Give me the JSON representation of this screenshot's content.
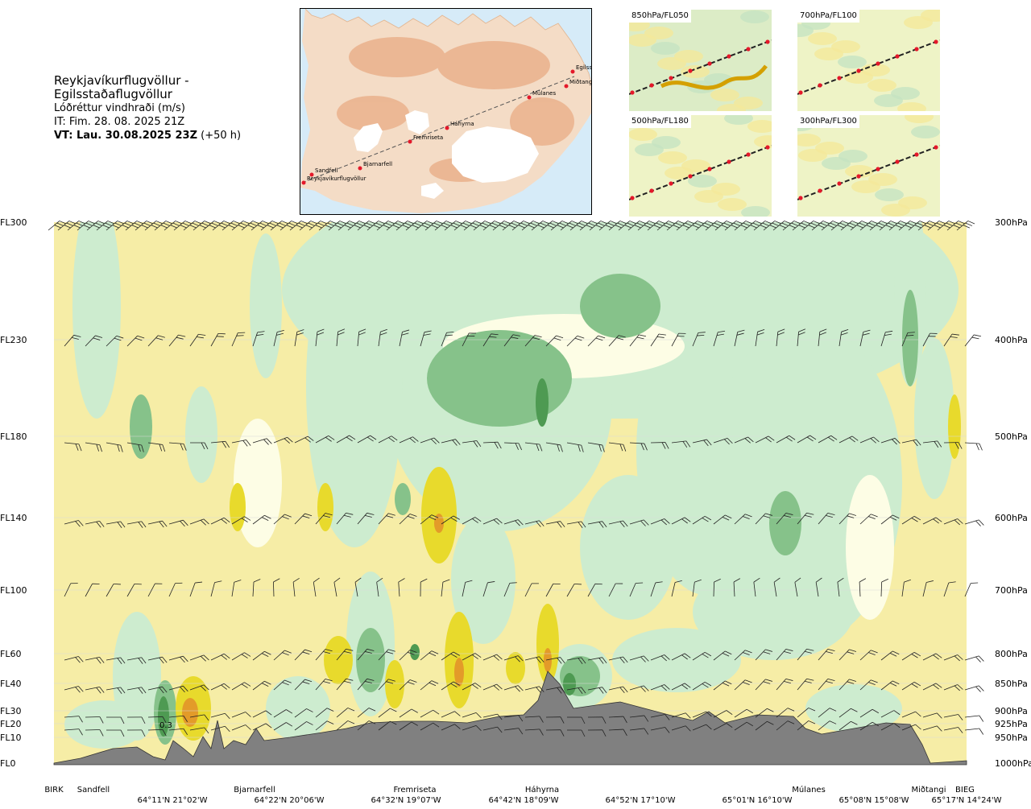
{
  "header": {
    "title": "Reykjavíkurflugvöllur - Egilsstaðaflugvöllur",
    "subtitle": "Lóðréttur vindhraði (m/s)",
    "issue_time": "IT: Fim. 28. 08. 2025 21Z",
    "valid_time_bold": "VT: Lau. 30.08.2025 23Z",
    "valid_time_offset": " (+50 h)"
  },
  "map": {
    "places": [
      {
        "name": "Reykjavíkurflugvöllur"
      },
      {
        "name": "Sandfell"
      },
      {
        "name": "Bjarnarfell"
      },
      {
        "name": "Fremriseta"
      },
      {
        "name": "Háhyrna"
      },
      {
        "name": "Múlanes"
      },
      {
        "name": "Miðtangi"
      },
      {
        "name": "Egilssta"
      }
    ]
  },
  "mini_maps": [
    {
      "label": "850hPa/FL050"
    },
    {
      "label": "700hPa/FL100"
    },
    {
      "label": "500hPa/FL180"
    },
    {
      "label": "300hPa/FL300"
    }
  ],
  "colors": {
    "strong_up": "#4e9a52",
    "up": "#86c28a",
    "weak_up": "#cdeccf",
    "neutral": "#fdfde5",
    "weak_down": "#f6eda6",
    "down": "#e8da2c",
    "strong_down": "#e39b29",
    "terrain": "#808080"
  },
  "chart_data": {
    "type": "heatmap",
    "title": "Reykjavíkurflugvöllur - Egilsstaðaflugvöllur",
    "value_label": "Lóðréttur vindhraði (m/s)",
    "levels": [
      {
        "fl": "FL300",
        "hpa": "300hPa"
      },
      {
        "fl": "FL230",
        "hpa": "400hPa"
      },
      {
        "fl": "FL180",
        "hpa": "500hPa"
      },
      {
        "fl": "FL140",
        "hpa": "600hPa"
      },
      {
        "fl": "FL100",
        "hpa": "700hPa"
      },
      {
        "fl": "FL60",
        "hpa": "800hPa"
      },
      {
        "fl": "FL40",
        "hpa": "850hPa"
      },
      {
        "fl": "FL30",
        "hpa": "900hPa"
      },
      {
        "fl": "FL20",
        "hpa": "925hPa"
      },
      {
        "fl": "FL10",
        "hpa": "950hPa"
      },
      {
        "fl": "FL0",
        "hpa": "1000hPa"
      }
    ],
    "route_points": [
      "BIRK",
      "Sandfell",
      "Bjarnarfell",
      "Fremriseta",
      "Háhyrna",
      "Múlanes",
      "Miðtangi",
      "BIEG"
    ],
    "coordinates": [
      "64°11'N 21°02'W",
      "64°22'N 20°06'W",
      "64°32'N 19°07'W",
      "64°42'N 18°09'W",
      "64°52'N 17°10'W",
      "65°01'N 16°10'W",
      "65°08'N 15°08'W",
      "65°17'N 14°24'W"
    ],
    "annotation": "0.3"
  }
}
